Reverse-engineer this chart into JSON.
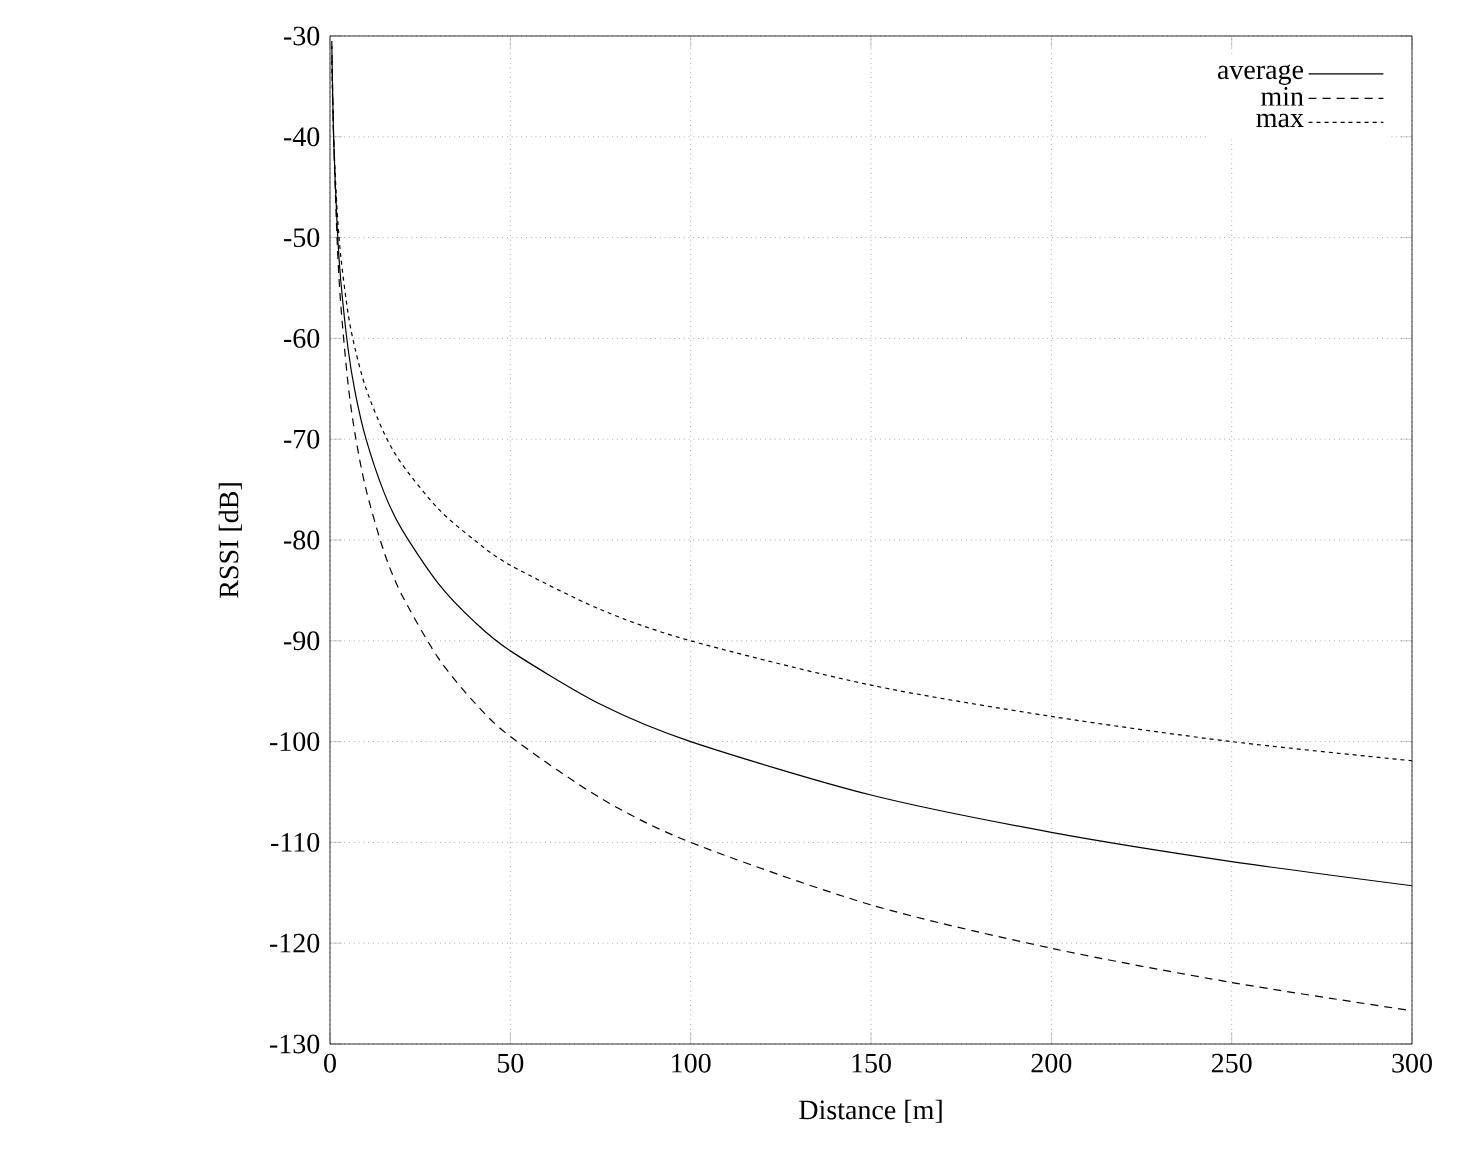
{
  "chart_data": {
    "type": "line",
    "xlabel": "Distance [m]",
    "ylabel": "RSSI [dB]",
    "xlim": [
      0,
      300
    ],
    "ylim": [
      -130,
      -30
    ],
    "xticks": [
      0,
      50,
      100,
      150,
      200,
      250,
      300
    ],
    "yticks": [
      -130,
      -120,
      -110,
      -100,
      -90,
      -80,
      -70,
      -60,
      -50,
      -40,
      -30
    ],
    "grid": true,
    "legend": "top right",
    "marker": "none",
    "x": [
      0.5,
      1,
      2,
      3,
      5,
      7,
      10,
      15,
      20,
      30,
      40,
      50,
      75,
      100,
      150,
      200,
      250,
      300
    ],
    "series": [
      {
        "name": "average",
        "color": "#000000",
        "line_style": "solid",
        "values": [
          -31,
          -40,
          -49,
          -54.3,
          -61,
          -65.4,
          -70,
          -75.3,
          -79,
          -84.3,
          -88.1,
          -91,
          -96.3,
          -100,
          -105.3,
          -109,
          -111.9,
          -114.3
        ]
      },
      {
        "name": "min",
        "color": "#000000",
        "line_style": "dashed",
        "values": [
          -30.5,
          -40,
          -50.5,
          -56.7,
          -64.5,
          -69.6,
          -75,
          -81.2,
          -85.5,
          -91.7,
          -96.1,
          -99.5,
          -105.6,
          -110,
          -116.2,
          -120.5,
          -123.9,
          -126.7
        ]
      },
      {
        "name": "max",
        "color": "#000000",
        "line_style": "dotted",
        "values": [
          -32.5,
          -40,
          -47.5,
          -51.9,
          -57.5,
          -61.1,
          -65,
          -69.4,
          -72.5,
          -76.9,
          -80,
          -82.5,
          -86.9,
          -90,
          -94.4,
          -97.5,
          -100,
          -101.9
        ]
      }
    ]
  }
}
